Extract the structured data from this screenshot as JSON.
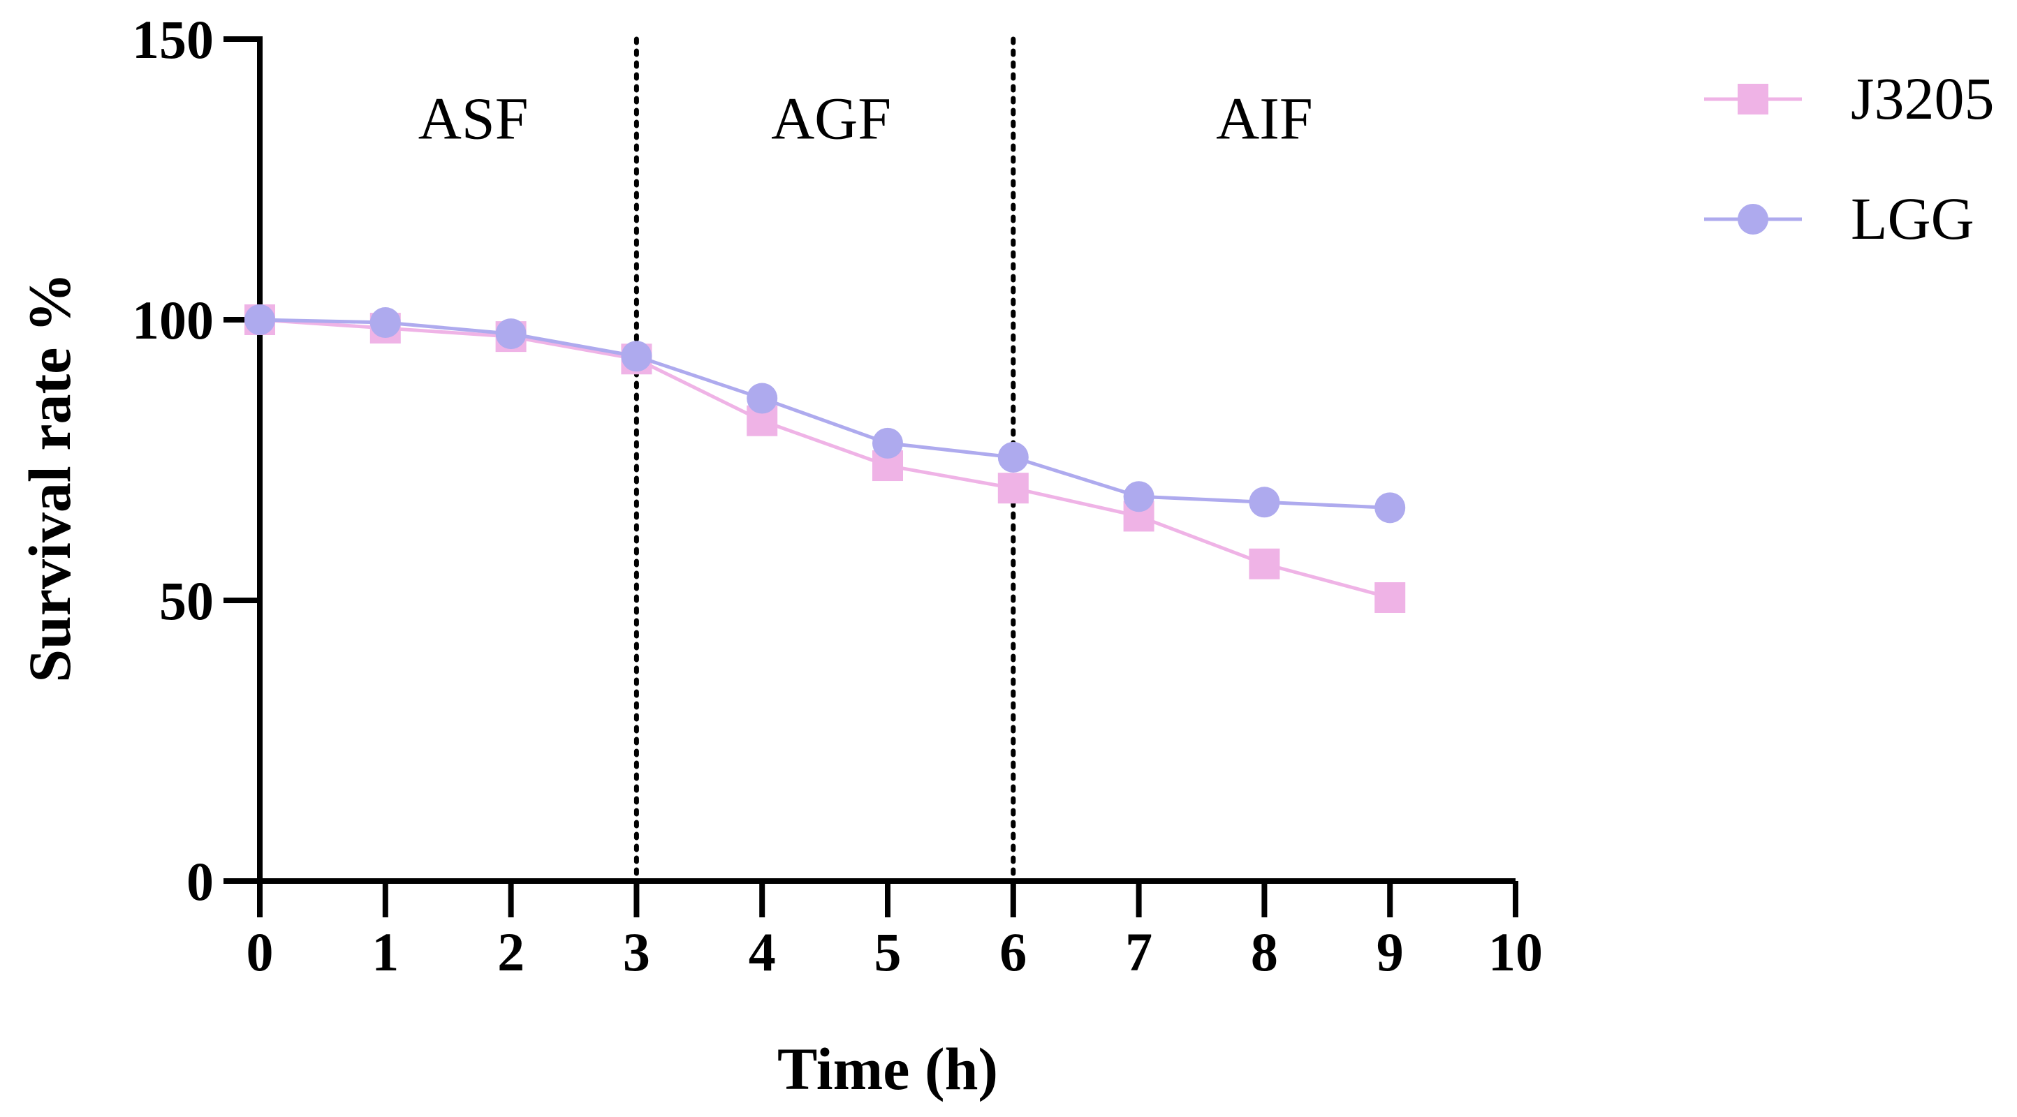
{
  "chart_data": {
    "type": "line",
    "title": "",
    "xlabel": "Time (h)",
    "ylabel": "Survival rate %",
    "xlim": [
      0,
      10
    ],
    "ylim": [
      0,
      150
    ],
    "x_ticks": [
      0,
      1,
      2,
      3,
      4,
      5,
      6,
      7,
      8,
      9,
      10
    ],
    "x_tick_labels": [
      "0",
      "1",
      "2",
      "3",
      "4",
      "5",
      "6",
      "7",
      "8",
      "9",
      "10"
    ],
    "y_ticks": [
      0,
      50,
      100,
      150
    ],
    "y_tick_labels": [
      "0",
      "50",
      "100",
      "150"
    ],
    "grid": false,
    "legend_position": "top-right, outside plot",
    "x": [
      0,
      1,
      2,
      3,
      4,
      5,
      6,
      7,
      8,
      9
    ],
    "series": [
      {
        "name": "J3205",
        "marker": "square",
        "color": "#efb3e6",
        "values": [
          100,
          98.5,
          97,
          93,
          82,
          74,
          70,
          65,
          56.5,
          50.5
        ]
      },
      {
        "name": "LGG",
        "marker": "circle",
        "color": "#aeaaee",
        "values": [
          100,
          99.5,
          97.5,
          93.5,
          86,
          78,
          75.5,
          68.5,
          67.5,
          66.5
        ]
      }
    ],
    "dividers": [
      3,
      6
    ],
    "regions": [
      {
        "label": "ASF",
        "x_center": 1.7
      },
      {
        "label": "AGF",
        "x_center": 4.55
      },
      {
        "label": "AIF",
        "x_center": 8.0
      }
    ],
    "region_label_y": 136
  }
}
